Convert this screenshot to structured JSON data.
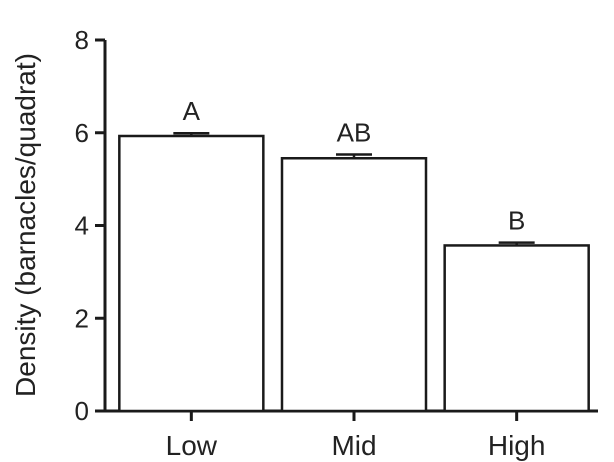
{
  "chart_data": {
    "type": "bar",
    "categories": [
      "Low",
      "Mid",
      "High"
    ],
    "values": [
      5.93,
      5.45,
      3.57
    ],
    "errors": [
      0.06,
      0.08,
      0.06
    ],
    "significance_labels": [
      "A",
      "AB",
      "B"
    ],
    "ylabel": "Density (barnacles/quadrat)",
    "xlabel": "",
    "title": "",
    "ylim": [
      0,
      8
    ],
    "yticks": [
      "0",
      "2",
      "4",
      "6",
      "8"
    ],
    "grid": false,
    "bar_fill": "#ffffff",
    "bar_stroke": "#1a1a1a"
  }
}
